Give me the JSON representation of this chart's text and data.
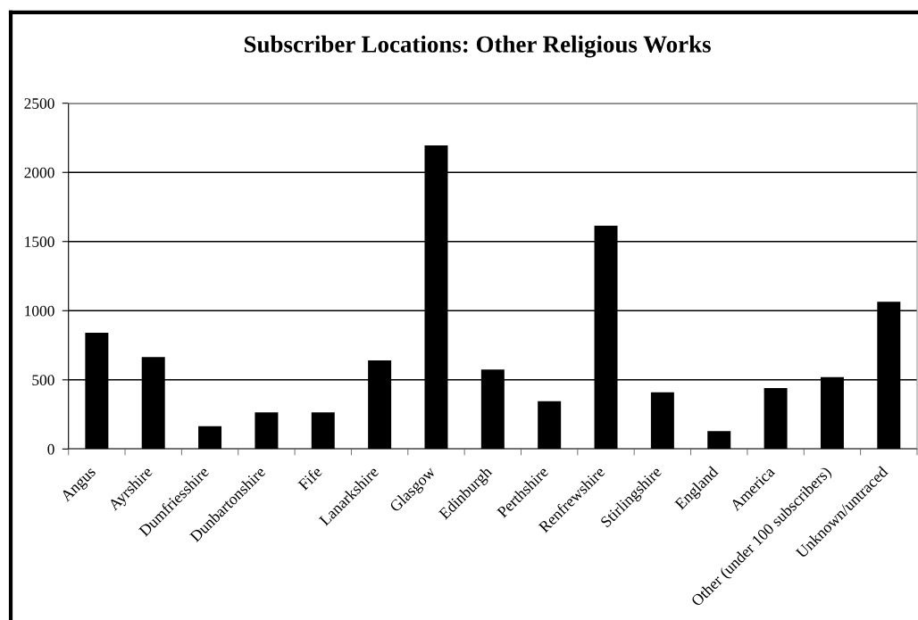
{
  "chart_data": {
    "type": "bar",
    "title": "Subscriber Locations: Other Religious Works",
    "categories": [
      "Angus",
      "Ayrshire",
      "Dumfriesshire",
      "Dunbartonshire",
      "Fife",
      "Lanarkshire",
      "Glasgow",
      "Edinburgh",
      "Perthshire",
      "Renfrewshire",
      "Stirlingshire",
      "England",
      "America",
      "Other (under 100 subscribers)",
      "Unknown/untraced"
    ],
    "values": [
      840,
      665,
      165,
      265,
      265,
      640,
      2195,
      575,
      345,
      1615,
      410,
      130,
      440,
      520,
      1065
    ],
    "color": "#000000",
    "ylim": [
      0,
      2500
    ],
    "yticks": [
      0,
      500,
      1000,
      1500,
      2000,
      2500
    ],
    "grid": "y"
  }
}
